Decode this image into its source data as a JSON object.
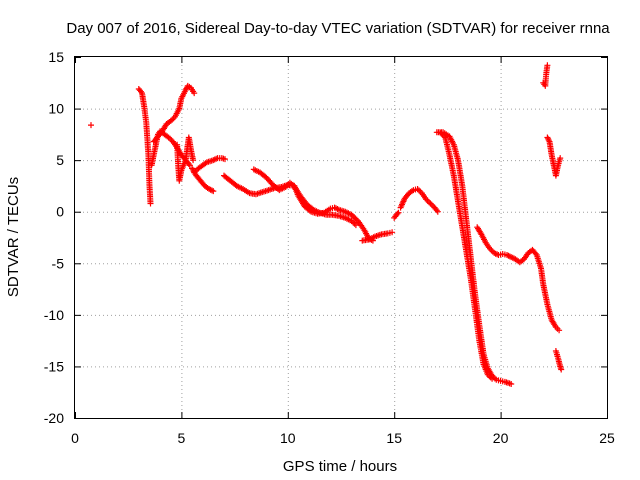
{
  "chart_data": {
    "type": "scatter",
    "title": "Day 007 of 2016, Sidereal Day-to-day VTEC variation (SDTVAR) for receiver rnna",
    "xlabel": "GPS time / hours",
    "ylabel": "SDTVAR / TECUs",
    "xlim": [
      0,
      25
    ],
    "ylim": [
      -20,
      15
    ],
    "xticks": [
      0,
      5,
      10,
      15,
      20,
      25
    ],
    "yticks": [
      -20,
      -15,
      -10,
      -5,
      0,
      5,
      10,
      15
    ],
    "grid": true,
    "marker": "plus",
    "color": "#ff0000",
    "segments": [
      [
        [
          0.75,
          8.4
        ]
      ],
      [
        [
          3.0,
          11.9
        ],
        [
          3.15,
          11.5
        ],
        [
          3.25,
          10.2
        ],
        [
          3.35,
          8.6
        ],
        [
          3.45,
          5.5
        ],
        [
          3.5,
          2.5
        ],
        [
          3.55,
          0.8
        ]
      ],
      [
        [
          3.6,
          4.5
        ],
        [
          3.7,
          5.5
        ],
        [
          3.8,
          6.5
        ],
        [
          3.9,
          7.5
        ],
        [
          4.0,
          7.8
        ],
        [
          4.2,
          7.5
        ],
        [
          4.4,
          7.2
        ],
        [
          4.6,
          6.8
        ],
        [
          4.8,
          6.2
        ],
        [
          5.0,
          5.5
        ],
        [
          5.2,
          5.0
        ],
        [
          5.4,
          4.5
        ]
      ],
      [
        [
          3.7,
          6.8
        ],
        [
          3.9,
          7.3
        ],
        [
          4.1,
          7.8
        ],
        [
          4.3,
          8.5
        ],
        [
          4.5,
          8.8
        ],
        [
          4.7,
          9.2
        ],
        [
          4.9,
          10.0
        ],
        [
          5.0,
          11.0
        ],
        [
          5.2,
          11.8
        ],
        [
          5.3,
          12.2
        ],
        [
          5.45,
          12.0
        ],
        [
          5.6,
          11.5
        ]
      ],
      [
        [
          4.8,
          6.5
        ],
        [
          4.85,
          4.5
        ],
        [
          4.9,
          3.0
        ],
        [
          5.0,
          4.0
        ],
        [
          5.1,
          4.5
        ],
        [
          5.2,
          5.0
        ],
        [
          5.3,
          6.5
        ],
        [
          5.35,
          7.2
        ],
        [
          5.45,
          6.0
        ],
        [
          5.55,
          5.0
        ]
      ],
      [
        [
          5.5,
          4.2
        ],
        [
          5.7,
          3.5
        ],
        [
          5.9,
          3.0
        ],
        [
          6.1,
          2.5
        ],
        [
          6.3,
          2.2
        ],
        [
          6.5,
          2.0
        ]
      ],
      [
        [
          5.6,
          3.8
        ],
        [
          5.8,
          4.2
        ],
        [
          6.0,
          4.5
        ],
        [
          6.2,
          4.8
        ],
        [
          6.5,
          5.0
        ],
        [
          6.7,
          5.2
        ],
        [
          6.9,
          5.2
        ],
        [
          7.05,
          5.1
        ]
      ],
      [
        [
          7.0,
          3.5
        ],
        [
          7.3,
          3.0
        ],
        [
          7.6,
          2.5
        ],
        [
          7.9,
          2.2
        ],
        [
          8.2,
          1.8
        ],
        [
          8.5,
          1.7
        ],
        [
          8.8,
          1.9
        ],
        [
          9.1,
          2.1
        ],
        [
          9.4,
          2.3
        ],
        [
          9.7,
          2.4
        ],
        [
          10.0,
          2.6
        ],
        [
          10.3,
          2.5
        ],
        [
          10.6,
          1.5
        ],
        [
          10.9,
          0.7
        ],
        [
          11.2,
          0.2
        ],
        [
          11.5,
          -0.1
        ],
        [
          11.8,
          -0.3
        ],
        [
          12.1,
          -0.3
        ],
        [
          12.4,
          -0.4
        ],
        [
          12.7,
          -0.6
        ],
        [
          13.0,
          -0.9
        ],
        [
          13.2,
          -1.3
        ]
      ],
      [
        [
          8.4,
          4.1
        ],
        [
          8.7,
          3.8
        ],
        [
          9.0,
          3.3
        ],
        [
          9.3,
          2.6
        ],
        [
          9.6,
          2.1
        ],
        [
          9.9,
          2.4
        ],
        [
          10.1,
          2.8
        ],
        [
          10.3,
          2.5
        ],
        [
          10.5,
          1.5
        ],
        [
          10.8,
          0.5
        ],
        [
          11.1,
          0.0
        ],
        [
          11.4,
          -0.2
        ],
        [
          11.7,
          -0.1
        ],
        [
          12.0,
          0.3
        ],
        [
          12.2,
          0.4
        ],
        [
          12.4,
          0.2
        ],
        [
          12.7,
          0.0
        ],
        [
          13.0,
          -0.3
        ],
        [
          13.3,
          -0.9
        ],
        [
          13.6,
          -1.8
        ],
        [
          13.8,
          -2.6
        ],
        [
          14.0,
          -2.8
        ]
      ],
      [
        [
          13.5,
          -2.8
        ],
        [
          13.8,
          -2.7
        ],
        [
          14.1,
          -2.4
        ],
        [
          14.4,
          -2.2
        ],
        [
          14.7,
          -2.1
        ],
        [
          14.9,
          -2.0
        ]
      ],
      [
        [
          15.0,
          -0.6
        ],
        [
          15.1,
          -0.3
        ],
        [
          15.2,
          -0.1
        ]
      ],
      [
        [
          15.3,
          0.4
        ],
        [
          15.5,
          1.3
        ],
        [
          15.7,
          1.8
        ],
        [
          15.9,
          2.1
        ],
        [
          16.1,
          2.2
        ],
        [
          16.3,
          1.8
        ],
        [
          16.5,
          1.2
        ],
        [
          16.7,
          0.8
        ],
        [
          16.9,
          0.4
        ],
        [
          17.05,
          0.0
        ]
      ],
      [
        [
          17.0,
          7.7
        ],
        [
          17.3,
          7.7
        ],
        [
          17.6,
          7.3
        ],
        [
          17.8,
          6.5
        ],
        [
          18.0,
          5.0
        ],
        [
          18.2,
          2.5
        ],
        [
          18.4,
          -1.0
        ],
        [
          18.6,
          -4.5
        ],
        [
          18.8,
          -8.0
        ],
        [
          19.0,
          -11.0
        ],
        [
          19.2,
          -13.8
        ],
        [
          19.4,
          -15.2
        ],
        [
          19.6,
          -15.9
        ],
        [
          19.8,
          -16.3
        ],
        [
          20.0,
          -16.4
        ],
        [
          20.2,
          -16.5
        ],
        [
          20.5,
          -16.7
        ]
      ],
      [
        [
          17.2,
          7.6
        ],
        [
          17.4,
          7.2
        ],
        [
          17.6,
          5.5
        ],
        [
          17.8,
          3.5
        ],
        [
          18.0,
          1.0
        ],
        [
          18.2,
          -1.5
        ],
        [
          18.4,
          -4.0
        ],
        [
          18.6,
          -6.5
        ],
        [
          18.8,
          -9.5
        ],
        [
          19.0,
          -12.5
        ],
        [
          19.2,
          -14.8
        ],
        [
          19.4,
          -15.8
        ],
        [
          19.6,
          -16.2
        ]
      ],
      [
        [
          18.9,
          -1.5
        ],
        [
          19.1,
          -2.2
        ],
        [
          19.3,
          -3.0
        ],
        [
          19.5,
          -3.6
        ],
        [
          19.7,
          -4.0
        ],
        [
          19.9,
          -4.2
        ],
        [
          20.1,
          -4.1
        ],
        [
          20.3,
          -4.2
        ],
        [
          20.5,
          -4.4
        ],
        [
          20.7,
          -4.6
        ],
        [
          20.9,
          -4.9
        ],
        [
          21.1,
          -4.6
        ],
        [
          21.3,
          -4.0
        ],
        [
          21.5,
          -3.7
        ],
        [
          21.7,
          -4.2
        ],
        [
          21.9,
          -5.5
        ],
        [
          22.0,
          -7.0
        ],
        [
          22.2,
          -9.0
        ],
        [
          22.4,
          -10.5
        ],
        [
          22.6,
          -11.2
        ],
        [
          22.75,
          -11.5
        ]
      ],
      [
        [
          22.0,
          12.5
        ],
        [
          22.1,
          12.2
        ],
        [
          22.15,
          13.5
        ],
        [
          22.2,
          14.2
        ]
      ],
      [
        [
          22.2,
          7.2
        ],
        [
          22.3,
          6.8
        ],
        [
          22.4,
          5.5
        ],
        [
          22.5,
          4.5
        ],
        [
          22.6,
          3.5
        ],
        [
          22.7,
          4.5
        ],
        [
          22.8,
          5.2
        ]
      ],
      [
        [
          22.6,
          -13.5
        ],
        [
          22.7,
          -14.2
        ],
        [
          22.8,
          -15.0
        ],
        [
          22.85,
          -15.3
        ]
      ]
    ]
  }
}
